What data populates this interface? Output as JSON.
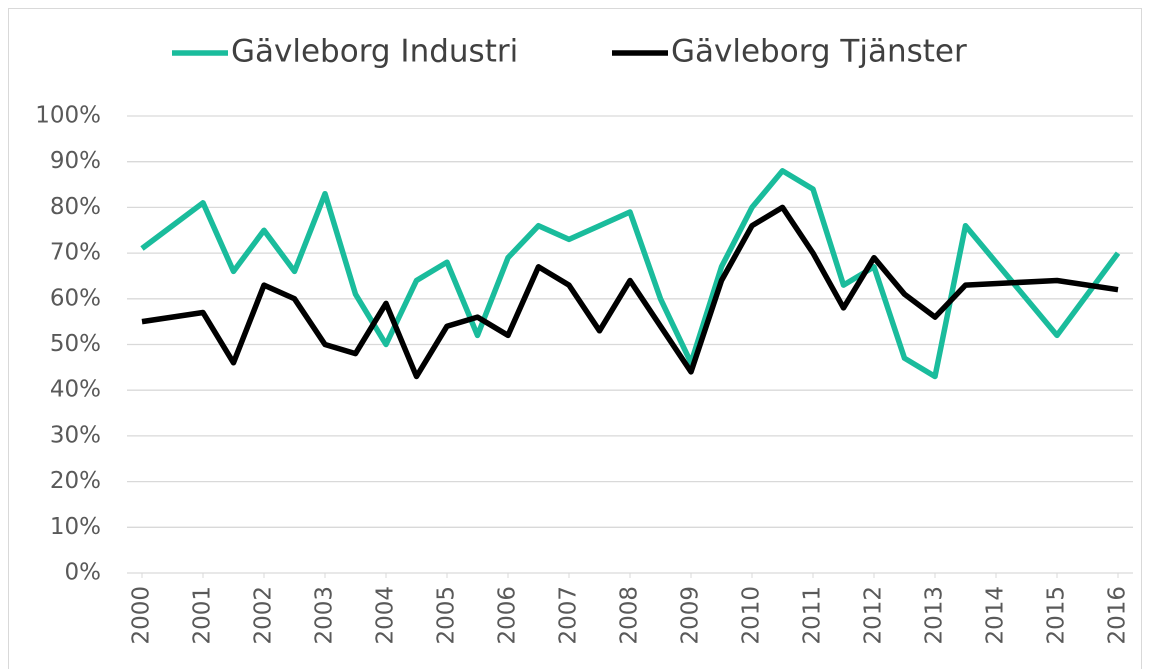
{
  "chart_data": {
    "type": "line",
    "x": [
      2000,
      2001,
      2001.5,
      2002,
      2002.5,
      2003,
      2003.5,
      2004,
      2004.5,
      2005,
      2005.5,
      2006,
      2006.5,
      2007,
      2007.5,
      2008,
      2008.5,
      2009,
      2009.5,
      2010,
      2010.5,
      2011,
      2011.5,
      2012,
      2012.5,
      2013,
      2013.5,
      2015,
      2016
    ],
    "series": [
      {
        "name": "Gävleborg Industri",
        "color": "#1abc9c",
        "values": [
          71,
          81,
          66,
          75,
          66,
          83,
          61,
          50,
          64,
          68,
          52,
          69,
          76,
          73,
          76,
          79,
          60,
          46,
          67,
          80,
          88,
          84,
          63,
          67,
          47,
          43,
          76,
          52,
          70
        ]
      },
      {
        "name": "Gävleborg Tjänster",
        "color": "#000000",
        "values": [
          55,
          57,
          46,
          63,
          60,
          50,
          48,
          59,
          43,
          54,
          56,
          52,
          67,
          63,
          53,
          64,
          54,
          44,
          64,
          76,
          80,
          70,
          58,
          69,
          61,
          56,
          63,
          64,
          62
        ]
      }
    ],
    "xlim": [
      2000,
      2016
    ],
    "xticks": [
      2000,
      2001,
      2002,
      2003,
      2004,
      2005,
      2006,
      2007,
      2008,
      2009,
      2010,
      2011,
      2012,
      2013,
      2014,
      2015,
      2016
    ],
    "ylim": [
      0,
      100
    ],
    "yticks": [
      {
        "value": 0,
        "label": "0%"
      },
      {
        "value": 10,
        "label": "10%"
      },
      {
        "value": 20,
        "label": "20%"
      },
      {
        "value": 30,
        "label": "30%"
      },
      {
        "value": 40,
        "label": "40%"
      },
      {
        "value": 50,
        "label": "50%"
      },
      {
        "value": 60,
        "label": "60%"
      },
      {
        "value": 70,
        "label": "70%"
      },
      {
        "value": 80,
        "label": "80%"
      },
      {
        "value": 90,
        "label": "90%"
      },
      {
        "value": 100,
        "label": "100%"
      }
    ],
    "grid": true,
    "legend": "top"
  }
}
